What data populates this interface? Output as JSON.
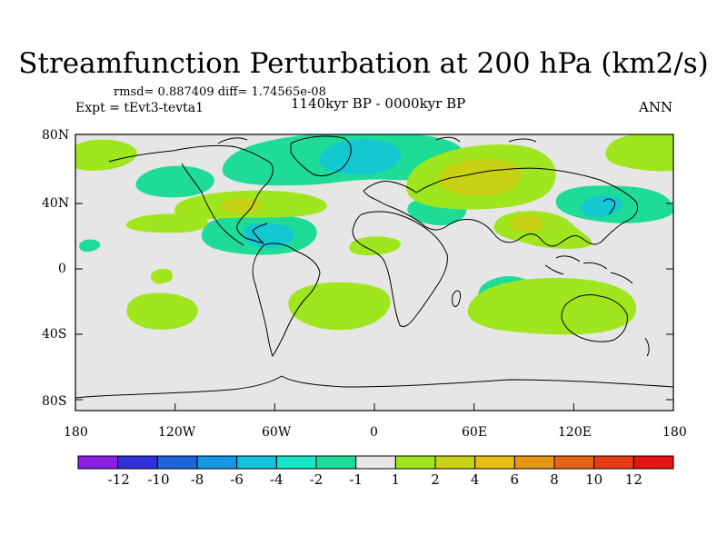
{
  "title": "Streamfunction Perturbation at 200 hPa (km2/s)",
  "stats_line": "rmsd= 0.887409 diff= 1.74565e-08",
  "experiment": "Expt = tEvt3-tevta1",
  "period": "1140kyr BP - 0000kyr BP",
  "season": "ANN",
  "lat_labels": [
    "80N",
    "40N",
    "0",
    "40S",
    "80S"
  ],
  "lon_labels": [
    "180",
    "120W",
    "60W",
    "0",
    "60E",
    "120E",
    "180"
  ],
  "colorbar": {
    "labels": [
      "-12",
      "-10",
      "-8",
      "-6",
      "-4",
      "-2",
      "-1",
      "1",
      "2",
      "4",
      "6",
      "8",
      "10",
      "12"
    ],
    "colors": [
      "#8c1ee6",
      "#3232dc",
      "#1e64dc",
      "#1496e6",
      "#14c3dc",
      "#14e6c8",
      "#1edc96",
      "#e6e6e6",
      "#a0e61e",
      "#c8d214",
      "#e6be14",
      "#e69614",
      "#e66414",
      "#e63c14",
      "#e61414"
    ]
  },
  "map_colors": {
    "background": "#e6e6e6",
    "neg1": "#1edc96",
    "neg2": "#14c8d2",
    "pos1": "#a0e61e",
    "pos2": "#c8d214",
    "pos3": "#d2be14"
  }
}
